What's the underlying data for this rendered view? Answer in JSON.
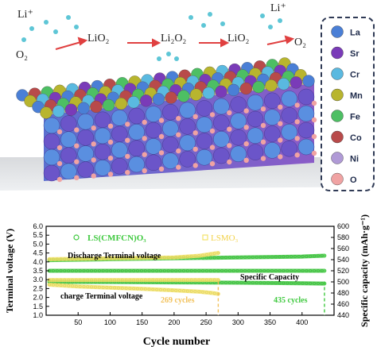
{
  "illustration": {
    "species": [
      "Li⁺",
      "O₂",
      "LiO₂",
      "Li₂O₂",
      "LiO₂",
      "Li⁺",
      "O₂"
    ],
    "legend": [
      {
        "label": "La",
        "color": "#4a7fd6"
      },
      {
        "label": "Sr",
        "color": "#7a3bb8"
      },
      {
        "label": "Cr",
        "color": "#5ab9e0"
      },
      {
        "label": "Mn",
        "color": "#b8b52e"
      },
      {
        "label": "Fe",
        "color": "#4dbf63"
      },
      {
        "label": "Co",
        "color": "#b84a4a"
      },
      {
        "label": "Ni",
        "color": "#b09ad6"
      },
      {
        "label": "O",
        "color": "#f0a3a3"
      }
    ]
  },
  "chart_data": {
    "type": "line",
    "xlabel": "Cycle number",
    "ylabel": "Terminal voltage (V)",
    "y2label": "Specific capacity (mAh·g⁻¹)",
    "xlim": [
      0,
      450
    ],
    "ylim": [
      1.0,
      6.0
    ],
    "y2lim": [
      440,
      600
    ],
    "xticks": [
      "50",
      "100",
      "150",
      "200",
      "250",
      "300",
      "350",
      "400"
    ],
    "yticks": [
      "1.0",
      "1.5",
      "2.0",
      "2.5",
      "3.0",
      "3.5",
      "4.0",
      "4.5",
      "5.0",
      "5.5",
      "6.0"
    ],
    "y2ticks": [
      "440",
      "460",
      "480",
      "500",
      "520",
      "540",
      "560",
      "580",
      "600"
    ],
    "legend": [
      {
        "name": "LS(CMFCN)O₃",
        "color": "#3fc93f"
      },
      {
        "name": "LSMO₃",
        "color": "#f2e36a"
      }
    ],
    "annotations": {
      "discharge": "Discharge Terminal voltage",
      "charge": "charge Terminal voltage",
      "capacity": "Specific Capacity",
      "cycles_lsmo": "269 cycles",
      "cycles_ls": "435 cycles"
    },
    "series": [
      {
        "name": "LS(CMFCN)O₃",
        "role": "discharge",
        "color": "#3fc93f",
        "x": [
          5,
          100,
          200,
          300,
          400,
          435
        ],
        "y": [
          4.1,
          4.15,
          4.2,
          4.25,
          4.3,
          4.35
        ]
      },
      {
        "name": "LS(CMFCN)O₃",
        "role": "charge",
        "color": "#3fc93f",
        "x": [
          5,
          100,
          200,
          300,
          400,
          435
        ],
        "y": [
          2.88,
          2.87,
          2.85,
          2.83,
          2.8,
          2.78
        ]
      },
      {
        "name": "LS(CMFCN)O₃",
        "role": "capacity",
        "color": "#3fc93f",
        "x": [
          5,
          100,
          200,
          300,
          400,
          435
        ],
        "y": [
          3.5,
          3.5,
          3.5,
          3.5,
          3.5,
          3.5
        ]
      },
      {
        "name": "LSMO₃",
        "role": "discharge",
        "color": "#f2e36a",
        "x": [
          5,
          100,
          200,
          240,
          269
        ],
        "y": [
          4.15,
          4.2,
          4.25,
          4.35,
          4.5
        ]
      },
      {
        "name": "LSMO₃",
        "role": "charge",
        "color": "#f2e36a",
        "x": [
          5,
          50,
          100,
          150,
          200,
          240,
          260,
          269
        ],
        "y": [
          2.72,
          2.62,
          2.55,
          2.48,
          2.4,
          2.32,
          2.25,
          2.2
        ]
      },
      {
        "name": "LSMO₃",
        "role": "capacity",
        "color": "#f2e36a",
        "x": [
          5,
          100,
          200,
          269
        ],
        "y": [
          2.98,
          2.98,
          2.98,
          2.98
        ]
      }
    ],
    "cutoffs": [
      {
        "series": "LSMO₃",
        "x": 269,
        "color": "#f2c15a"
      },
      {
        "series": "LS(CMFCN)O₃",
        "x": 435,
        "color": "#3fc93f"
      }
    ]
  }
}
